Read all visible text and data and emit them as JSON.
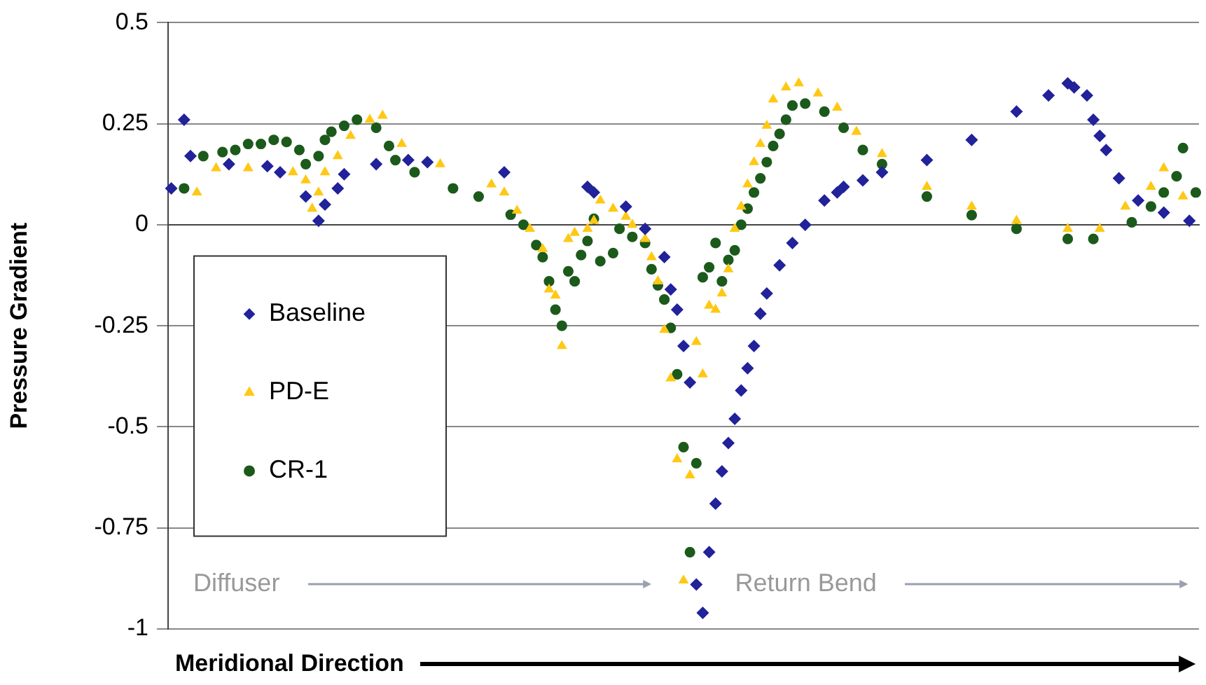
{
  "chart_data": {
    "type": "scatter",
    "xlabel": "Meridional Direction",
    "ylabel": "Pressure Gradient",
    "categories": [
      null,
      null,
      null,
      null,
      null,
      null,
      null,
      null,
      null,
      null,
      null,
      null,
      null,
      null,
      null,
      null,
      null,
      null,
      null,
      null,
      null,
      null,
      null,
      null,
      null,
      null,
      null,
      null,
      null,
      null,
      null,
      null,
      null,
      null,
      null,
      null,
      null,
      null,
      null,
      null,
      null,
      null,
      null,
      null,
      null,
      null,
      null,
      null,
      null,
      null,
      null,
      null,
      null,
      null,
      null,
      null,
      null,
      null,
      null,
      null,
      null,
      null,
      null,
      null,
      null,
      null,
      null,
      null,
      null,
      null,
      null,
      null,
      null,
      null,
      null,
      null,
      null,
      null,
      null,
      null,
      null,
      null,
      null,
      null,
      null,
      null,
      null,
      null,
      null,
      null,
      null,
      null,
      null,
      null,
      null,
      null,
      null,
      null,
      null,
      null,
      null,
      null,
      null,
      null,
      null,
      null,
      null,
      null,
      null,
      null,
      null,
      null,
      null,
      null,
      null,
      null,
      null,
      null,
      null,
      null,
      null,
      null,
      null,
      null,
      null,
      null,
      null,
      null,
      null,
      null,
      null,
      null,
      null,
      null,
      null,
      null,
      null,
      null,
      null,
      null,
      null,
      null,
      null,
      null,
      null,
      null,
      null,
      null,
      null,
      null,
      null,
      null,
      null,
      null,
      null,
      null,
      null,
      null,
      null,
      null,
      null
    ],
    "ylim": [
      -1,
      0.5
    ],
    "yticks": [
      -1,
      -0.75,
      -0.5,
      -0.25,
      0,
      0.25,
      0.5
    ],
    "grid": "y",
    "legend": "left",
    "tick_labels": "y",
    "annotations": [
      "Diffuser",
      "Return Bend"
    ],
    "series": [
      {
        "name": "Baseline",
        "color": "#22229a",
        "marker": "diamond",
        "values": [
          0.09,
          null,
          0.26,
          0.17,
          null,
          null,
          null,
          null,
          null,
          0.15,
          null,
          null,
          null,
          null,
          null,
          0.145,
          null,
          0.13,
          null,
          null,
          null,
          0.07,
          null,
          0.01,
          0.05,
          null,
          0.09,
          0.125,
          null,
          null,
          null,
          null,
          0.15,
          null,
          null,
          null,
          null,
          0.16,
          null,
          null,
          0.155,
          null,
          null,
          null,
          null,
          null,
          null,
          null,
          null,
          null,
          null,
          null,
          0.13,
          null,
          null,
          null,
          null,
          null,
          null,
          null,
          null,
          null,
          null,
          null,
          null,
          0.094,
          0.08,
          null,
          null,
          null,
          null,
          0.045,
          null,
          null,
          -0.01,
          null,
          null,
          -0.08,
          -0.16,
          -0.21,
          -0.3,
          -0.39,
          -0.89,
          -0.96,
          -0.81,
          -0.69,
          -0.61,
          -0.54,
          -0.48,
          -0.41,
          -0.355,
          -0.3,
          -0.22,
          -0.17,
          null,
          -0.1,
          null,
          -0.045,
          null,
          0,
          null,
          null,
          0.06,
          null,
          0.08,
          0.094,
          null,
          null,
          0.11,
          null,
          null,
          0.13,
          null,
          null,
          null,
          null,
          null,
          null,
          0.16,
          null,
          null,
          null,
          null,
          null,
          null,
          0.21,
          null,
          null,
          null,
          null,
          null,
          null,
          0.28,
          null,
          null,
          null,
          null,
          0.32,
          null,
          null,
          0.35,
          0.34,
          null,
          0.32,
          0.26,
          0.22,
          0.185,
          null,
          0.115,
          null,
          null,
          0.06,
          null,
          null,
          null,
          0.03,
          null,
          null,
          null,
          0.01,
          null
        ]
      },
      {
        "name": "PD-E",
        "color": "#ffc814",
        "marker": "triangle",
        "values": [
          null,
          null,
          null,
          null,
          0.08,
          null,
          null,
          0.14,
          null,
          null,
          null,
          null,
          0.14,
          null,
          null,
          null,
          null,
          null,
          null,
          0.13,
          null,
          0.11,
          0.04,
          0.08,
          0.13,
          null,
          0.17,
          null,
          0.22,
          null,
          null,
          0.26,
          null,
          0.27,
          null,
          null,
          0.2,
          null,
          null,
          null,
          null,
          null,
          0.15,
          null,
          null,
          null,
          null,
          null,
          null,
          null,
          0.1,
          null,
          0.08,
          null,
          0.035,
          null,
          -0.01,
          null,
          -0.06,
          -0.16,
          -0.175,
          -0.3,
          -0.035,
          -0.02,
          null,
          -0.01,
          0.01,
          0.06,
          null,
          0.04,
          null,
          0.02,
          0,
          null,
          -0.035,
          -0.08,
          -0.14,
          -0.26,
          -0.38,
          -0.58,
          -0.88,
          -0.62,
          -0.29,
          -0.37,
          -0.2,
          -0.21,
          -0.17,
          -0.11,
          -0.01,
          0.045,
          0.1,
          0.155,
          0.2,
          0.245,
          0.31,
          null,
          0.34,
          null,
          0.35,
          null,
          null,
          0.325,
          null,
          null,
          0.29,
          null,
          null,
          0.23,
          null,
          null,
          null,
          0.175,
          null,
          null,
          null,
          null,
          null,
          null,
          0.094,
          null,
          null,
          null,
          null,
          null,
          null,
          0.045,
          null,
          null,
          null,
          null,
          null,
          null,
          0.01,
          null,
          null,
          null,
          null,
          null,
          null,
          null,
          -0.01,
          null,
          null,
          null,
          null,
          -0.01,
          null,
          null,
          null,
          0.045,
          null,
          null,
          null,
          0.094,
          null,
          0.14,
          null,
          null,
          0.07,
          null,
          null
        ]
      },
      {
        "name": "CR-1",
        "color": "#1c5a1c",
        "marker": "circle",
        "values": [
          null,
          null,
          0.09,
          null,
          null,
          0.17,
          null,
          null,
          0.18,
          null,
          0.185,
          null,
          0.2,
          null,
          0.2,
          null,
          0.21,
          null,
          0.205,
          null,
          0.185,
          0.15,
          null,
          0.17,
          0.21,
          0.23,
          null,
          0.245,
          null,
          0.26,
          null,
          null,
          0.24,
          null,
          0.195,
          0.16,
          null,
          null,
          0.13,
          null,
          null,
          null,
          null,
          null,
          0.09,
          null,
          null,
          null,
          0.07,
          null,
          null,
          null,
          null,
          0.025,
          null,
          0,
          null,
          -0.05,
          -0.08,
          -0.14,
          -0.21,
          -0.25,
          -0.115,
          -0.14,
          -0.075,
          -0.04,
          0.015,
          -0.09,
          null,
          -0.07,
          -0.01,
          null,
          -0.03,
          null,
          -0.045,
          -0.11,
          -0.15,
          -0.185,
          -0.255,
          -0.37,
          -0.55,
          -0.81,
          -0.59,
          -0.13,
          -0.105,
          -0.045,
          -0.14,
          -0.087,
          -0.063,
          0,
          0.04,
          0.08,
          0.115,
          0.155,
          0.195,
          0.225,
          0.26,
          0.295,
          null,
          0.3,
          null,
          null,
          0.28,
          null,
          null,
          0.24,
          null,
          null,
          0.185,
          null,
          null,
          0.15,
          null,
          null,
          null,
          null,
          null,
          null,
          0.07,
          null,
          null,
          null,
          null,
          null,
          null,
          0.024,
          null,
          null,
          null,
          null,
          null,
          null,
          -0.01,
          null,
          null,
          null,
          null,
          null,
          null,
          null,
          -0.035,
          null,
          null,
          null,
          -0.035,
          null,
          null,
          null,
          null,
          null,
          0.006,
          null,
          null,
          0.045,
          null,
          0.08,
          null,
          0.12,
          0.19,
          null,
          0.08
        ]
      }
    ]
  }
}
